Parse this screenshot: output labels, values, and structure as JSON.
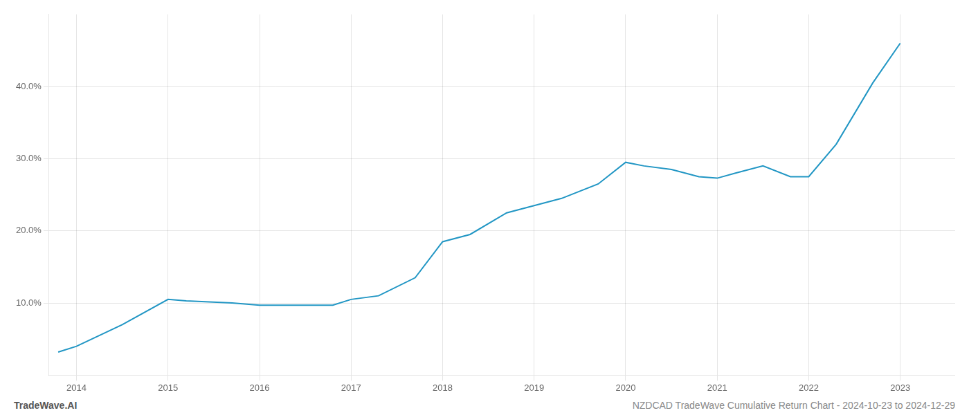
{
  "chart_data": {
    "type": "line",
    "title": "NZDCAD TradeWave Cumulative Return Chart - 2024-10-23 to 2024-12-29",
    "annotations": [
      "TradeWave.AI"
    ],
    "x": [
      2013.8,
      2014.0,
      2014.5,
      2015.0,
      2015.2,
      2015.7,
      2016.0,
      2016.5,
      2016.8,
      2017.0,
      2017.3,
      2017.7,
      2018.0,
      2018.3,
      2018.7,
      2019.0,
      2019.3,
      2019.7,
      2020.0,
      2020.2,
      2020.5,
      2020.8,
      2021.0,
      2021.2,
      2021.5,
      2021.8,
      2022.0,
      2022.3,
      2022.7,
      2023.0
    ],
    "values": [
      3.2,
      4.0,
      7.0,
      10.5,
      10.3,
      10.0,
      9.7,
      9.7,
      9.7,
      10.5,
      11.0,
      13.5,
      18.5,
      19.5,
      22.5,
      23.5,
      24.5,
      26.5,
      29.5,
      29.0,
      28.5,
      27.5,
      27.3,
      28.0,
      29.0,
      27.5,
      27.5,
      32.0,
      40.5,
      46.0
    ],
    "color": "#2196c4",
    "xlim": [
      2013.7,
      2023.6
    ],
    "xticks": [
      2014,
      2015,
      2016,
      2017,
      2018,
      2019,
      2020,
      2021,
      2022,
      2023
    ],
    "ylim": [
      0,
      50
    ],
    "yticks": [
      {
        "value": 10.0,
        "label": "10.0%"
      },
      {
        "value": 20.0,
        "label": "20.0%"
      },
      {
        "value": 30.0,
        "label": "30.0%"
      },
      {
        "value": 40.0,
        "label": "40.0%"
      }
    ],
    "grid": true
  }
}
